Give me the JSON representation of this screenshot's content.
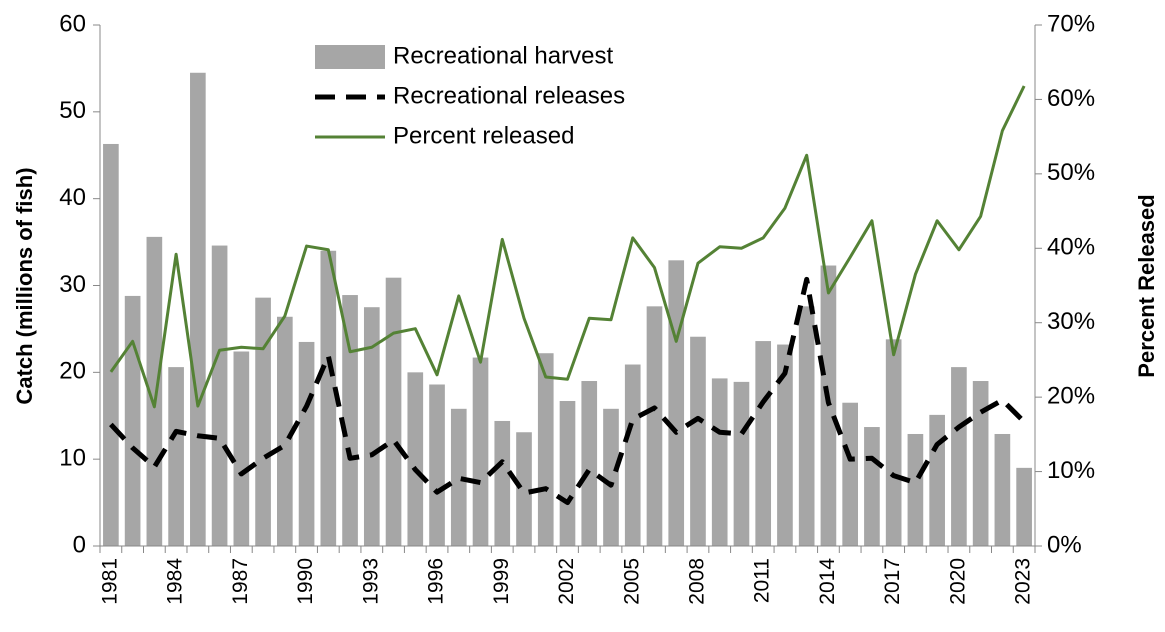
{
  "chart_data": {
    "type": "bar_line",
    "y_label": "Catch (millions of fish)",
    "y2_label": "Percent Released",
    "categories": [
      "1981",
      null,
      null,
      "1984",
      null,
      null,
      "1987",
      null,
      null,
      "1990",
      null,
      null,
      "1993",
      null,
      null,
      "1996",
      null,
      null,
      "1999",
      null,
      null,
      "2002",
      null,
      null,
      "2005",
      null,
      null,
      "2008",
      null,
      null,
      "2011",
      null,
      null,
      "2014",
      null,
      null,
      "2017",
      null,
      null,
      "2020",
      null,
      null,
      "2023"
    ],
    "ylim": [
      0,
      60
    ],
    "yticks": [
      0,
      10,
      20,
      30,
      40,
      50,
      60
    ],
    "y2lim": [
      0,
      70
    ],
    "y2ticks": [
      {
        "value": 0,
        "label": "0%"
      },
      {
        "value": 10,
        "label": "10%"
      },
      {
        "value": 20,
        "label": "20%"
      },
      {
        "value": 30,
        "label": "30%"
      },
      {
        "value": 40,
        "label": "40%"
      },
      {
        "value": 50,
        "label": "50%"
      },
      {
        "value": 60,
        "label": "60%"
      },
      {
        "value": 70,
        "label": "70%"
      }
    ],
    "legend": "upper center",
    "series": [
      {
        "name": "Recreational harvest",
        "type": "bar",
        "color": "#a6a6a6",
        "values": [
          46.3,
          28.8,
          35.6,
          20.6,
          54.5,
          34.6,
          22.4,
          28.6,
          26.4,
          23.5,
          34.0,
          28.9,
          27.5,
          30.9,
          20.0,
          18.6,
          15.8,
          21.7,
          14.4,
          13.1,
          22.2,
          16.7,
          19.0,
          15.8,
          20.9,
          27.6,
          32.9,
          24.1,
          19.3,
          18.9,
          23.6,
          23.2,
          27.6,
          32.3,
          16.5,
          13.7,
          23.8,
          12.9,
          15.1,
          20.6,
          19.0,
          12.9,
          9.0
        ]
      },
      {
        "name": "Recreational releases",
        "type": "line",
        "line_style": "dashed",
        "color": "#000000",
        "values": [
          14.0,
          11.3,
          9.1,
          13.2,
          12.7,
          12.4,
          8.3,
          10.1,
          11.6,
          16.1,
          21.9,
          10.1,
          10.5,
          12.2,
          8.8,
          6.2,
          7.8,
          7.3,
          9.7,
          6.1,
          6.6,
          5.0,
          8.8,
          7.0,
          14.6,
          15.9,
          13.1,
          14.7,
          13.1,
          12.9,
          16.6,
          19.9,
          30.7,
          16.5,
          10.0,
          10.1,
          8.1,
          7.3,
          11.7,
          13.7,
          15.4,
          16.8,
          14.3
        ]
      },
      {
        "name": "Percent released",
        "type": "line",
        "line_style": "solid",
        "color": "#548235",
        "axis": "y2",
        "values": [
          23.4,
          27.5,
          18.7,
          39.2,
          18.8,
          26.3,
          26.7,
          26.5,
          30.9,
          40.3,
          39.8,
          26.1,
          26.7,
          28.6,
          29.2,
          23.0,
          33.6,
          24.7,
          41.2,
          30.6,
          22.7,
          22.4,
          30.6,
          30.4,
          41.4,
          37.4,
          27.5,
          38.0,
          40.2,
          40.0,
          41.4,
          45.4,
          52.5,
          34.0,
          38.8,
          43.7,
          25.7,
          36.5,
          43.7,
          39.8,
          44.3,
          55.8,
          61.8
        ]
      }
    ]
  }
}
